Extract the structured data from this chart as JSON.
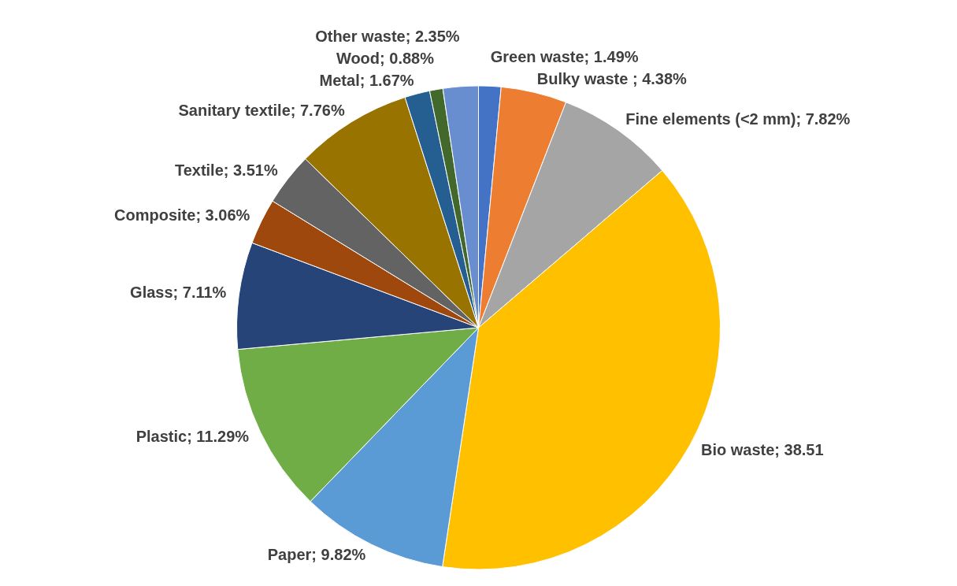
{
  "chart_data": {
    "type": "pie",
    "categories": [
      "Green waste",
      "Bulky waste ",
      "Fine elements (<2 mm)",
      "Bio waste",
      "Paper",
      "Plastic",
      "Glass",
      "Composite",
      "Textile",
      "Sanitary textile",
      "Metal",
      "Wood",
      "Other waste"
    ],
    "values": [
      1.49,
      4.38,
      7.82,
      38.51,
      9.82,
      11.29,
      7.11,
      3.06,
      3.51,
      7.76,
      1.67,
      0.88,
      2.35
    ],
    "value_labels": [
      "1.49%",
      "4.38%",
      "7.82%",
      "38.51",
      "9.82%",
      "11.29%",
      "7.11%",
      "3.06%",
      "3.51%",
      "7.76%",
      "1.67%",
      "0.88%",
      "2.35%"
    ],
    "colors": [
      "#4472c4",
      "#ed7d31",
      "#a5a5a5",
      "#ffc000",
      "#5b9bd5",
      "#70ad47",
      "#264478",
      "#9e480e",
      "#636363",
      "#997300",
      "#255e91",
      "#43682b",
      "#698ed0"
    ]
  }
}
